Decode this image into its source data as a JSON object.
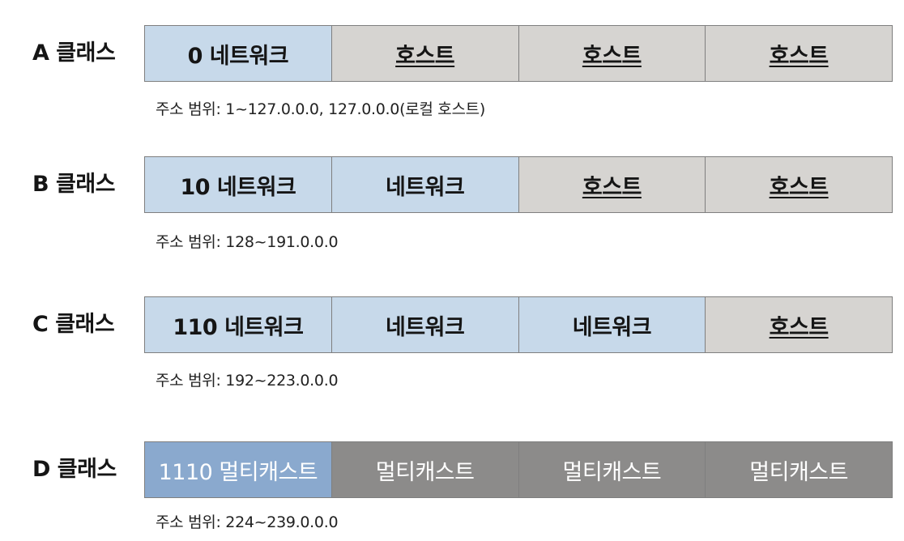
{
  "classes": [
    {
      "label": "A 클래스",
      "segments": [
        {
          "text": "0 네트워크",
          "kind": "network"
        },
        {
          "text": "호스트",
          "kind": "host"
        },
        {
          "text": "호스트",
          "kind": "host"
        },
        {
          "text": "호스트",
          "kind": "host"
        }
      ],
      "range": "주소 범위: 1~127.0.0.0, 127.0.0.0(로컬 호스트)"
    },
    {
      "label": "B 클래스",
      "segments": [
        {
          "text": "10 네트워크",
          "kind": "network"
        },
        {
          "text": "네트워크",
          "kind": "network"
        },
        {
          "text": "호스트",
          "kind": "host"
        },
        {
          "text": "호스트",
          "kind": "host"
        }
      ],
      "range": "주소 범위: 128~191.0.0.0"
    },
    {
      "label": "C 클래스",
      "segments": [
        {
          "text": "110 네트워크",
          "kind": "network"
        },
        {
          "text": "네트워크",
          "kind": "network"
        },
        {
          "text": "네트워크",
          "kind": "network"
        },
        {
          "text": "호스트",
          "kind": "host"
        }
      ],
      "range": "주소 범위: 192~223.0.0.0"
    },
    {
      "label": "D 클래스",
      "segments": [
        {
          "text": "1110 멀티캐스트",
          "kind": "mcast-id"
        },
        {
          "text": "멀티캐스트",
          "kind": "mcast"
        },
        {
          "text": "멀티캐스트",
          "kind": "mcast"
        },
        {
          "text": "멀티캐스트",
          "kind": "mcast"
        }
      ],
      "range": "주소 범위: 224~239.0.0.0"
    }
  ],
  "colors": {
    "network": "#c7d9ea",
    "host": "#d6d4d1",
    "multicast_id": "#8aa9ce",
    "multicast": "#8c8b8a"
  }
}
